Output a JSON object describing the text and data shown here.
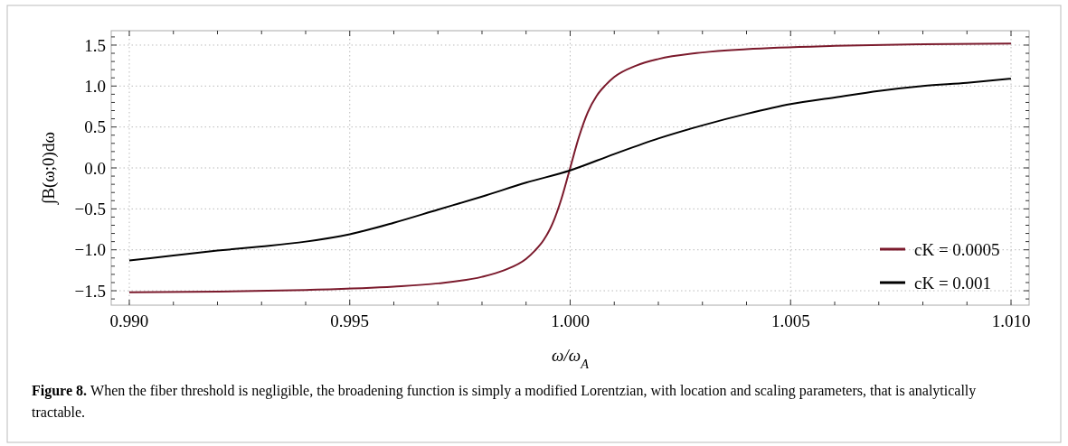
{
  "chart_data": {
    "type": "line",
    "xlabel": "ω/ω$_{A}$",
    "ylabel": "∫B(ω;0)dω",
    "annotations": [
      "Figure 8.",
      "When the fiber threshold is negligible, the broadening function is simply a modified Lorentzian, with location and scaling parameters, that is analytically tractable."
    ],
    "xlim": [
      0.98959,
      1.01041
    ],
    "ylim": [
      -1.676,
      1.676
    ],
    "xticks": [
      {
        "value": 0.99,
        "label": "0.990"
      },
      {
        "value": 0.991,
        "label": null
      },
      {
        "value": 0.992,
        "label": null
      },
      {
        "value": 0.993,
        "label": null
      },
      {
        "value": 0.994,
        "label": null
      },
      {
        "value": 0.995,
        "label": "0.995"
      },
      {
        "value": 0.996,
        "label": null
      },
      {
        "value": 0.997,
        "label": null
      },
      {
        "value": 0.998,
        "label": null
      },
      {
        "value": 0.999,
        "label": null
      },
      {
        "value": 1.0,
        "label": "1.000"
      },
      {
        "value": 1.001,
        "label": null
      },
      {
        "value": 1.002,
        "label": null
      },
      {
        "value": 1.003,
        "label": null
      },
      {
        "value": 1.004,
        "label": null
      },
      {
        "value": 1.005,
        "label": "1.005"
      },
      {
        "value": 1.006,
        "label": null
      },
      {
        "value": 1.007,
        "label": null
      },
      {
        "value": 1.008,
        "label": null
      },
      {
        "value": 1.009,
        "label": null
      },
      {
        "value": 1.01,
        "label": "1.010"
      }
    ],
    "yticks": [
      {
        "value": -1.6,
        "label": null
      },
      {
        "value": -1.5,
        "label": "−1.5"
      },
      {
        "value": -1.4,
        "label": null
      },
      {
        "value": -1.3,
        "label": null
      },
      {
        "value": -1.2,
        "label": null
      },
      {
        "value": -1.1,
        "label": null
      },
      {
        "value": -1.0,
        "label": "−1.0"
      },
      {
        "value": -0.9,
        "label": null
      },
      {
        "value": -0.8,
        "label": null
      },
      {
        "value": -0.7,
        "label": null
      },
      {
        "value": -0.6,
        "label": null
      },
      {
        "value": -0.5,
        "label": "−0.5"
      },
      {
        "value": -0.4,
        "label": null
      },
      {
        "value": -0.3,
        "label": null
      },
      {
        "value": -0.2,
        "label": null
      },
      {
        "value": -0.1,
        "label": null
      },
      {
        "value": 0,
        "label": "0.0"
      },
      {
        "value": 0.1,
        "label": null
      },
      {
        "value": 0.2,
        "label": null
      },
      {
        "value": 0.3,
        "label": null
      },
      {
        "value": 0.4,
        "label": null
      },
      {
        "value": 0.5,
        "label": "0.5"
      },
      {
        "value": 0.6,
        "label": null
      },
      {
        "value": 0.7,
        "label": null
      },
      {
        "value": 0.8,
        "label": null
      },
      {
        "value": 0.9,
        "label": null
      },
      {
        "value": 1.0,
        "label": "1.0"
      },
      {
        "value": 1.1,
        "label": null
      },
      {
        "value": 1.2,
        "label": null
      },
      {
        "value": 1.3,
        "label": null
      },
      {
        "value": 1.4,
        "label": null
      },
      {
        "value": 1.5,
        "label": "1.5"
      },
      {
        "value": 1.6,
        "label": null
      }
    ],
    "grid": true,
    "legend": "bottom right",
    "marker": "none",
    "line_style": "solid",
    "series": [
      {
        "name": "cK = 0.0005",
        "color": "#7b1a2c",
        "x": [
          0.99,
          0.992,
          0.994,
          0.996,
          0.997,
          0.998,
          0.9985,
          0.999,
          0.9992,
          0.9994,
          0.9996,
          0.9998,
          1.0,
          1.0002,
          1.0004,
          1.0006,
          1.0008,
          1.001,
          1.0015,
          1.002,
          1.003,
          1.004,
          1.006,
          1.008,
          1.01
        ],
        "values": [
          -1.52,
          -1.51,
          -1.49,
          -1.45,
          -1.41,
          -1.33,
          -1.25,
          -1.11,
          -1.01,
          -0.88,
          -0.68,
          -0.38,
          0,
          0.38,
          0.68,
          0.88,
          1.01,
          1.11,
          1.25,
          1.33,
          1.41,
          1.45,
          1.49,
          1.51,
          1.52
        ]
      },
      {
        "name": "cK = 0.001",
        "color": "#000000",
        "x": [
          0.99,
          0.991,
          0.992,
          0.993,
          0.994,
          0.995,
          0.996,
          0.997,
          0.998,
          0.999,
          1.0,
          1.001,
          1.002,
          1.003,
          1.004,
          1.005,
          1.006,
          1.007,
          1.008,
          1.009,
          1.01
        ],
        "values": [
          -1.13,
          -1.07,
          -1.01,
          -0.96,
          -0.9,
          -0.81,
          -0.67,
          -0.51,
          -0.35,
          -0.18,
          -0.03,
          0.17,
          0.36,
          0.52,
          0.66,
          0.78,
          0.86,
          0.94,
          1.0,
          1.04,
          1.09
        ]
      }
    ]
  }
}
